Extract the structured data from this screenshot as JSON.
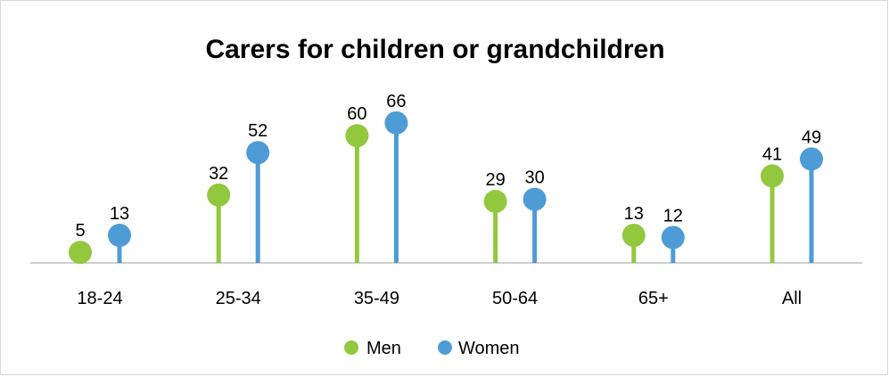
{
  "chart_data": {
    "type": "lollipop",
    "title": "Carers for children or grandchildren",
    "xlabel": "",
    "ylabel": "",
    "categories": [
      "18-24",
      "25-34",
      "35-49",
      "50-64",
      "65+",
      "All"
    ],
    "series": [
      {
        "name": "Men",
        "color": "#92c83e",
        "values": [
          5,
          32,
          60,
          29,
          13,
          41
        ]
      },
      {
        "name": "Women",
        "color": "#4d9cd6",
        "values": [
          13,
          52,
          66,
          30,
          12,
          49
        ]
      }
    ],
    "ylim": [
      0,
      75
    ],
    "grid": false,
    "data_labels": true,
    "legend_position": "bottom"
  }
}
